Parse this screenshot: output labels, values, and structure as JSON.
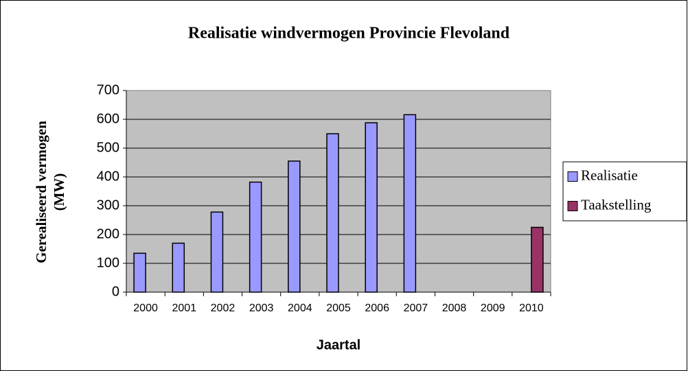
{
  "chart_data": {
    "type": "bar",
    "title": "Realisatie windvermogen Provincie Flevoland",
    "ylabel_lines": [
      "Gerealiseerd vermogen",
      "(MW)"
    ],
    "xlabel": "Jaartal",
    "categories": [
      "2000",
      "2001",
      "2002",
      "2003",
      "2004",
      "2005",
      "2006",
      "2007",
      "2008",
      "2009",
      "2010"
    ],
    "series": [
      {
        "name": "Realisatie",
        "color": "#9999ff",
        "values": [
          135,
          170,
          278,
          382,
          455,
          550,
          588,
          616,
          null,
          null,
          null
        ]
      },
      {
        "name": "Taakstelling",
        "color": "#993366",
        "values": [
          null,
          null,
          null,
          null,
          null,
          null,
          null,
          null,
          null,
          null,
          225
        ]
      }
    ],
    "ylim": [
      0,
      700
    ],
    "yticks": [
      0,
      100,
      200,
      300,
      400,
      500,
      600,
      700
    ],
    "grid": true,
    "legend": "right"
  }
}
